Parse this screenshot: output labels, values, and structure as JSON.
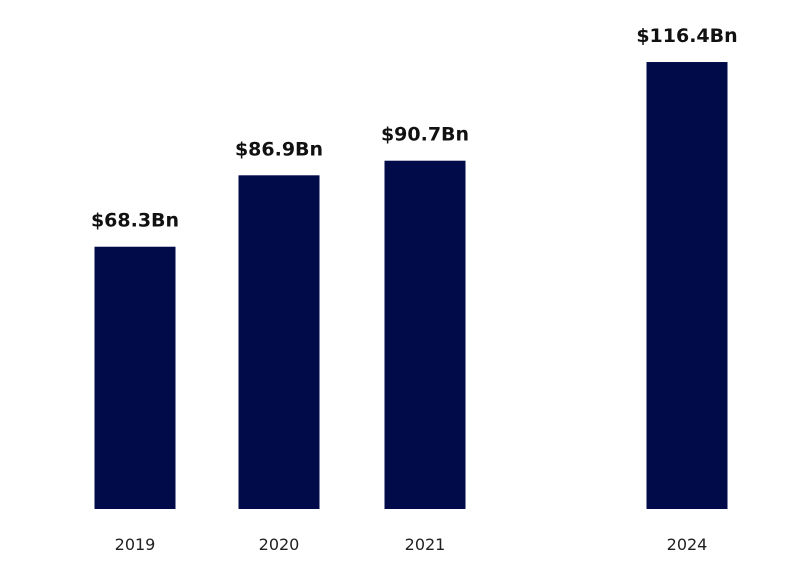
{
  "chart_data": {
    "type": "bar",
    "categories": [
      "2019",
      "2020",
      "2021",
      "2024"
    ],
    "values": [
      68.3,
      86.9,
      90.7,
      116.4
    ],
    "data_labels": [
      "$68.3Bn",
      "$86.9Bn",
      "$90.7Bn",
      "$116.4Bn"
    ],
    "title": "",
    "xlabel": "",
    "ylabel": "",
    "ylim": [
      0,
      130
    ],
    "grid": false,
    "bar_color": "#020b4a"
  }
}
